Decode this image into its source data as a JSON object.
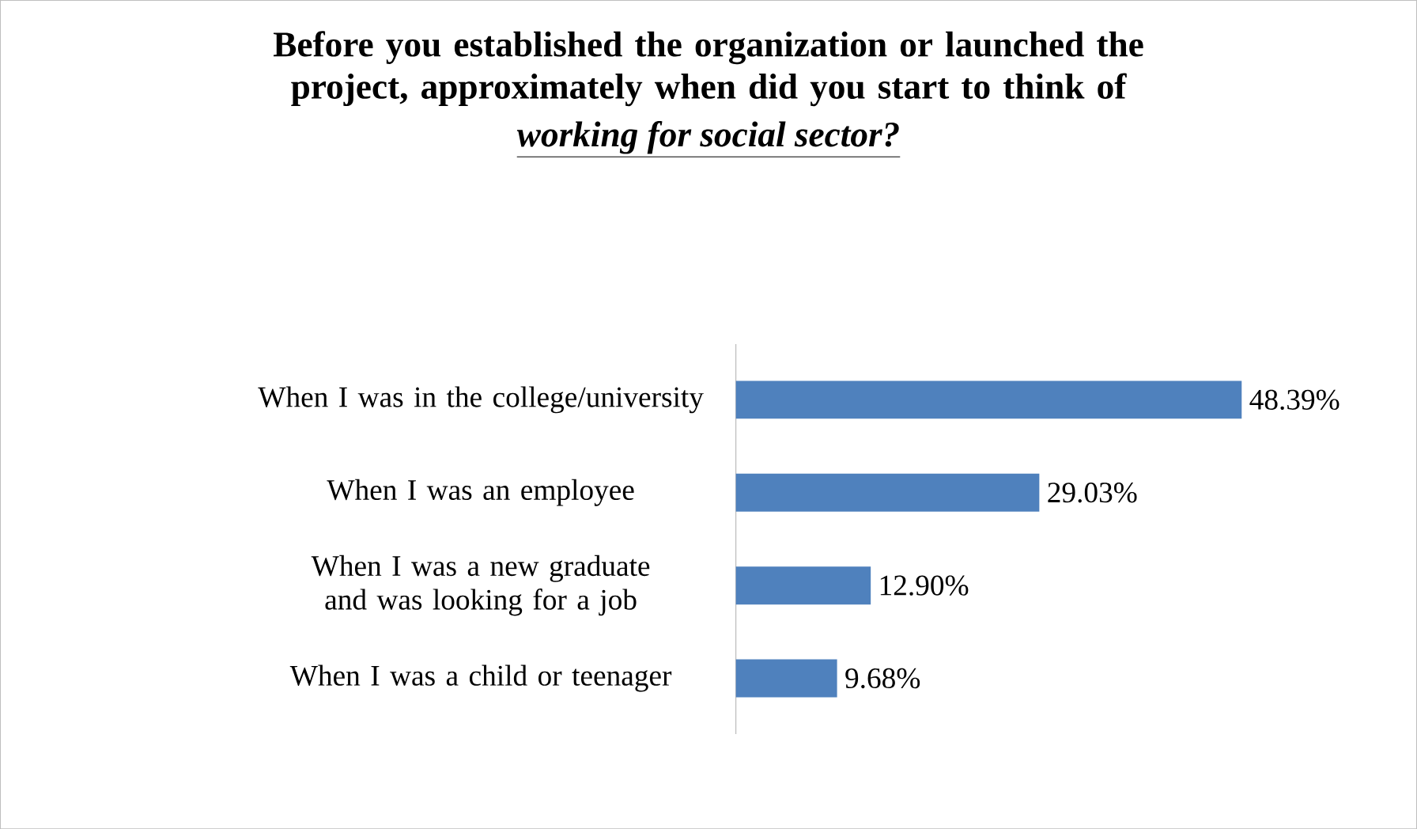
{
  "chart_data": {
    "type": "bar",
    "orientation": "horizontal",
    "title": "Before you established the organization or launched the project, approximately when did you start to think of",
    "subtitle": "*working for social sector?*",
    "categories": [
      "When I was in the college/university",
      "When I was an employee",
      "When I was a new graduate and was looking for a job",
      "When I was a child or teenager"
    ],
    "values": [
      48.39,
      29.03,
      12.9,
      9.68
    ],
    "value_labels": [
      "48.39%",
      "29.03%",
      "12.90%",
      "9.68%"
    ],
    "color": "#4f81bd"
  }
}
